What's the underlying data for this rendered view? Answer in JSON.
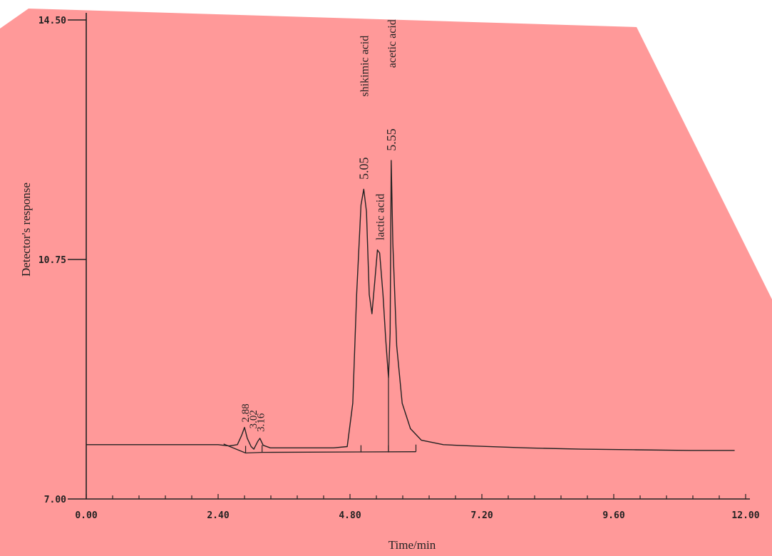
{
  "background_color": "#ff9999",
  "line_color": "#222222",
  "chart_data": {
    "type": "line",
    "xlabel": "Time/min",
    "ylabel": "Detector's response",
    "xlim": [
      0.0,
      12.0
    ],
    "ylim": [
      7.0,
      14.5
    ],
    "x_ticks": [
      "0.00",
      "2.40",
      "4.80",
      "7.20",
      "9.60",
      "12.00"
    ],
    "y_ticks": [
      "7.00",
      "10.75",
      "14.50"
    ],
    "x_tick_values": [
      0.0,
      2.4,
      4.8,
      7.2,
      9.6,
      12.0
    ],
    "y_tick_values": [
      7.0,
      10.75,
      14.5
    ],
    "series": [
      {
        "values": [
          [
            0.0,
            7.85
          ],
          [
            0.5,
            7.85
          ],
          [
            1.0,
            7.85
          ],
          [
            1.5,
            7.85
          ],
          [
            2.0,
            7.85
          ],
          [
            2.4,
            7.85
          ],
          [
            2.6,
            7.83
          ],
          [
            2.75,
            7.85
          ],
          [
            2.83,
            8.0
          ],
          [
            2.88,
            8.12
          ],
          [
            2.93,
            7.95
          ],
          [
            3.0,
            7.82
          ],
          [
            3.05,
            7.78
          ],
          [
            3.12,
            7.9
          ],
          [
            3.16,
            7.95
          ],
          [
            3.22,
            7.84
          ],
          [
            3.35,
            7.8
          ],
          [
            4.0,
            7.8
          ],
          [
            4.5,
            7.8
          ],
          [
            4.75,
            7.82
          ],
          [
            4.85,
            8.5
          ],
          [
            4.92,
            10.2
          ],
          [
            5.0,
            11.6
          ],
          [
            5.05,
            11.85
          ],
          [
            5.1,
            11.5
          ],
          [
            5.15,
            10.2
          ],
          [
            5.2,
            9.9
          ],
          [
            5.25,
            10.4
          ],
          [
            5.3,
            10.9
          ],
          [
            5.34,
            10.85
          ],
          [
            5.4,
            10.2
          ],
          [
            5.45,
            9.5
          ],
          [
            5.5,
            8.9
          ],
          [
            5.53,
            9.6
          ],
          [
            5.55,
            12.3
          ],
          [
            5.58,
            11.0
          ],
          [
            5.65,
            9.4
          ],
          [
            5.75,
            8.5
          ],
          [
            5.9,
            8.1
          ],
          [
            6.1,
            7.92
          ],
          [
            6.5,
            7.85
          ],
          [
            7.0,
            7.83
          ],
          [
            8.0,
            7.8
          ],
          [
            9.0,
            7.78
          ],
          [
            10.0,
            7.77
          ],
          [
            11.0,
            7.76
          ],
          [
            11.8,
            7.76
          ]
        ]
      }
    ],
    "baseline": [
      [
        2.5,
        7.86
      ],
      [
        2.9,
        7.72
      ],
      [
        3.2,
        7.73
      ],
      [
        6.0,
        7.74
      ]
    ],
    "integration_marks": [
      [
        2.9,
        7.72
      ],
      [
        3.2,
        7.73
      ],
      [
        5.0,
        7.73
      ],
      [
        5.5,
        7.73
      ],
      [
        6.0,
        7.74
      ]
    ],
    "annotations": [
      {
        "text": "2.88",
        "x": 2.88,
        "y": 8.2,
        "rotated": true,
        "size": "small"
      },
      {
        "text": "3.02",
        "x": 3.02,
        "y": 8.1,
        "rotated": true,
        "size": "small"
      },
      {
        "text": "3.16",
        "x": 3.16,
        "y": 8.05,
        "rotated": true,
        "size": "small"
      },
      {
        "text": "5.05",
        "x": 5.05,
        "y": 12.0,
        "rotated": true,
        "size": "large"
      },
      {
        "text": "shikimic acid",
        "x": 5.05,
        "y": 13.3,
        "rotated": true,
        "size": "medium"
      },
      {
        "text": "lactic acid",
        "x": 5.34,
        "y": 11.05,
        "rotated": true,
        "size": "medium"
      },
      {
        "text": "5.55",
        "x": 5.55,
        "y": 12.45,
        "rotated": true,
        "size": "large"
      },
      {
        "text": "acetic acid",
        "x": 5.55,
        "y": 13.75,
        "rotated": true,
        "size": "medium"
      }
    ],
    "grid": false,
    "legend": "none"
  }
}
